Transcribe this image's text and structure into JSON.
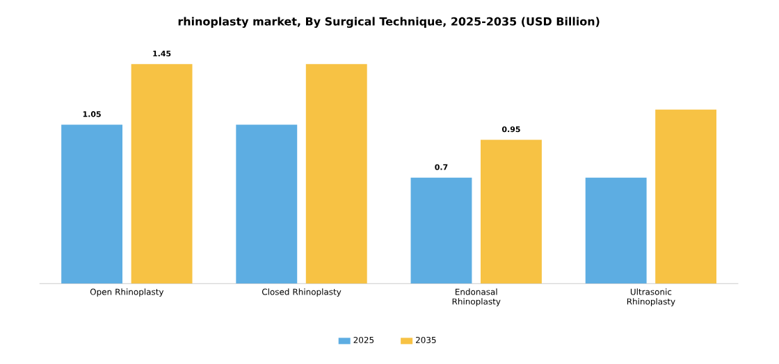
{
  "chart_data": {
    "type": "bar",
    "title": "rhinoplasty market, By Surgical Technique, 2025-2035 (USD Billion)",
    "categories": [
      "Open Rhinoplasty",
      "Closed Rhinoplasty",
      "Endonasal Rhinoplasty",
      "Ultrasonic Rhinoplasty"
    ],
    "series": [
      {
        "name": "2025",
        "color": "#5dade2",
        "values": [
          1.05,
          1.05,
          0.7,
          0.7
        ],
        "value_labels": [
          "1.05",
          null,
          "0.7",
          null
        ]
      },
      {
        "name": "2035",
        "color": "#f7c244",
        "values": [
          1.45,
          1.45,
          0.95,
          1.15
        ],
        "value_labels": [
          "1.45",
          null,
          "0.95",
          null
        ]
      }
    ],
    "legend": "bottom"
  }
}
